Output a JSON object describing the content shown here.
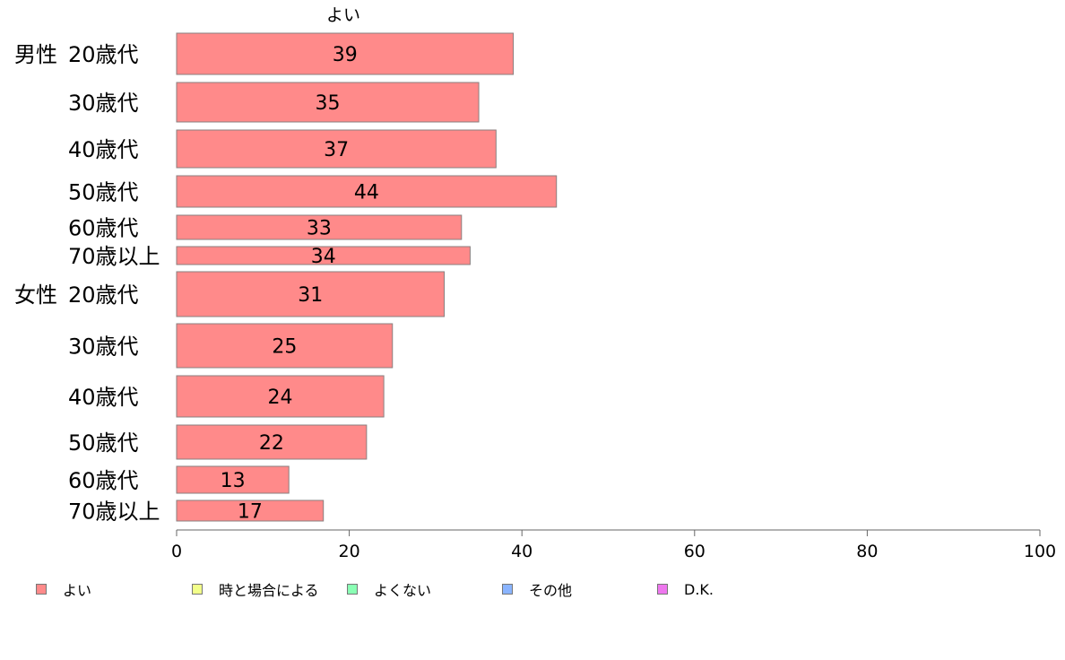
{
  "chart_data": {
    "type": "bar",
    "orientation": "horizontal",
    "title": "よい",
    "groups": [
      {
        "label": "男性",
        "categories": [
          "20歳代",
          "30歳代",
          "40歳代",
          "50歳代",
          "60歳代",
          "70歳以上"
        ],
        "values": [
          39,
          35,
          37,
          44,
          33,
          34
        ]
      },
      {
        "label": "女性",
        "categories": [
          "20歳代",
          "30歳代",
          "40歳代",
          "50歳代",
          "60歳代",
          "70歳以上"
        ],
        "values": [
          31,
          25,
          24,
          22,
          13,
          17
        ]
      }
    ],
    "xlim": [
      0,
      100
    ],
    "xticks": [
      0,
      20,
      40,
      60,
      80,
      100
    ],
    "grid": false,
    "bar_color": "#ff8a8a",
    "bar_border_color": "#8a7f7f",
    "legend_position": "bottom",
    "legend": [
      {
        "label": "よい",
        "color": "#ff8a8a"
      },
      {
        "label": "時と場合による",
        "color": "#f2ff8a"
      },
      {
        "label": "よくない",
        "color": "#8affb4"
      },
      {
        "label": "その他",
        "color": "#8ab4ff"
      },
      {
        "label": "D.K.",
        "color": "#ee77ee"
      }
    ]
  }
}
